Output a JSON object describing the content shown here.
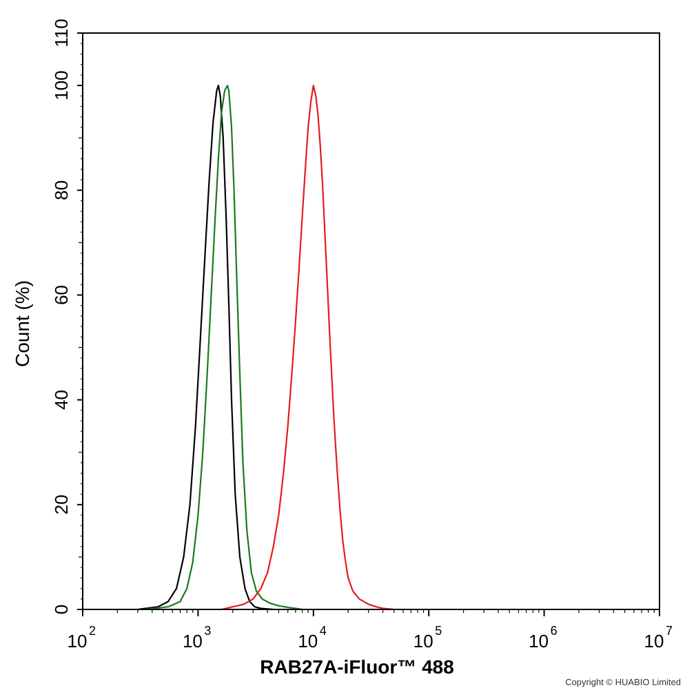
{
  "chart_data": {
    "type": "line",
    "xlabel": "RAB27A-iFluor™ 488",
    "ylabel": "Count  (%)",
    "x_scale": "log",
    "xlim": [
      100,
      10000000
    ],
    "ylim": [
      0,
      110
    ],
    "x_ticks": [
      {
        "base": "10",
        "exp": "2"
      },
      {
        "base": "10",
        "exp": "3"
      },
      {
        "base": "10",
        "exp": "4"
      },
      {
        "base": "10",
        "exp": "5"
      },
      {
        "base": "10",
        "exp": "6"
      },
      {
        "base": "10",
        "exp": "7"
      }
    ],
    "y_ticks": [
      "0",
      "20",
      "40",
      "60",
      "80",
      "100",
      "110"
    ],
    "grid": false,
    "legend": "none",
    "series": [
      {
        "color": "#000000",
        "x": [
          300,
          450,
          550,
          650,
          750,
          850,
          950,
          1050,
          1150,
          1250,
          1350,
          1450,
          1500,
          1560,
          1650,
          1750,
          1850,
          1950,
          2100,
          2300,
          2550,
          2800,
          3100,
          3500,
          4500
        ],
        "y": [
          0,
          0.5,
          1.5,
          4,
          10,
          20,
          35,
          52,
          68,
          82,
          93,
          99,
          100,
          98,
          90,
          75,
          58,
          40,
          22,
          10,
          4,
          1.5,
          0.5,
          0.2,
          0
        ]
      },
      {
        "color": "#1a7a1a",
        "x": [
          350,
          550,
          700,
          800,
          900,
          1000,
          1100,
          1200,
          1300,
          1400,
          1500,
          1600,
          1700,
          1800,
          1850,
          1950,
          2050,
          2150,
          2300,
          2450,
          2650,
          2900,
          3200,
          3600,
          4200,
          5000,
          6000,
          7000,
          8000
        ],
        "y": [
          0,
          0.5,
          1.5,
          4,
          9,
          18,
          30,
          45,
          60,
          74,
          86,
          95,
          99,
          100,
          99,
          92,
          80,
          65,
          45,
          28,
          15,
          7,
          3.5,
          2,
          1.2,
          0.7,
          0.4,
          0.2,
          0
        ]
      },
      {
        "color": "#e41a1c",
        "x": [
          1600,
          2000,
          2500,
          3000,
          3500,
          4000,
          4500,
          5000,
          5500,
          6000,
          6500,
          7000,
          7500,
          8000,
          8500,
          9000,
          9500,
          10000,
          10500,
          11000,
          11500,
          12000,
          13000,
          14000,
          15000,
          16000,
          17000,
          18000,
          19000,
          20000,
          22000,
          25000,
          30000,
          35000,
          40000,
          50000
        ],
        "y": [
          0,
          0.5,
          1,
          2,
          4,
          7,
          12,
          18,
          26,
          35,
          45,
          55,
          65,
          75,
          84,
          92,
          97,
          100,
          98,
          94,
          88,
          81,
          65,
          50,
          37,
          27,
          19,
          13,
          9,
          6,
          3.5,
          2,
          1,
          0.5,
          0.2,
          0
        ]
      }
    ]
  },
  "copyright": "Copyright © HUABIO Limited"
}
